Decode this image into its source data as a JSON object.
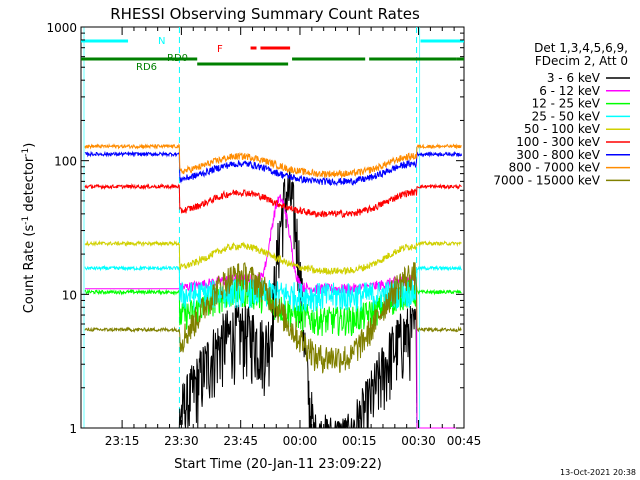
{
  "chart_data": {
    "type": "line",
    "title": "RHESSI Observing Summary Count Rates",
    "xlabel": "Start Time (20-Jan-11 23:09:22)",
    "ylabel_main": "Count Rate (s",
    "ylabel_sup1": "-1",
    "ylabel_mid": " detector",
    "ylabel_sup2": "-1",
    "ylabel_end": ")",
    "yscale": "log",
    "ylim": [
      1,
      1000
    ],
    "xlim_minutes": [
      -5.4,
      91.5
    ],
    "x_unit": "minutes after 23:10 (20-Jan-11)",
    "yticks": [
      {
        "value": 1,
        "label": "1"
      },
      {
        "value": 10,
        "label": "10"
      },
      {
        "value": 100,
        "label": "100"
      },
      {
        "value": 1000,
        "label": "1000"
      }
    ],
    "xticks": [
      {
        "minute": 5,
        "label": "23:15"
      },
      {
        "minute": 20,
        "label": "23:30"
      },
      {
        "minute": 35,
        "label": "23:45"
      },
      {
        "minute": 50,
        "label": "00:00"
      },
      {
        "minute": 65,
        "label": "00:15"
      },
      {
        "minute": 80,
        "label": "00:30"
      },
      {
        "minute": 95,
        "label": "00:45"
      }
    ],
    "legend_title": [
      "Det 1,3,4,5,6,9,",
      "FDecim 2, Att 0"
    ],
    "legend_placement": "right",
    "series": [
      {
        "name": "3 - 6 keV",
        "color": "#000000",
        "shape": "flare",
        "base": 0.8,
        "bump": 4.5,
        "peak": 55,
        "peak_min": 47
      },
      {
        "name": "6 - 12 keV",
        "color": "#ff00ff",
        "shape": "flare6",
        "base": 11,
        "bump": 13,
        "peak": 40,
        "peak_min": 45
      },
      {
        "name": "12 - 25 keV",
        "color": "#00ff00",
        "shape": "orbit",
        "base": 6.5,
        "bump": 10.5
      },
      {
        "name": "25 - 50 keV",
        "color": "#00ffff",
        "shape": "orbit",
        "base": 9.8,
        "bump": 10.5
      },
      {
        "name": "50 - 100 keV",
        "color": "#d0d000",
        "shape": "orbit",
        "base": 15,
        "bump": 23
      },
      {
        "name": "100 - 300 keV",
        "color": "#ff0000",
        "shape": "orbit",
        "base": 40,
        "bump": 58
      },
      {
        "name": "300 - 800 keV",
        "color": "#0000ff",
        "shape": "orbit",
        "base": 70,
        "bump": 95
      },
      {
        "name": "800 - 7000 keV",
        "color": "#ff8c00",
        "shape": "orbit",
        "base": 80,
        "bump": 108
      },
      {
        "name": "7000 - 15000 keV",
        "color": "#808000",
        "shape": "orbit",
        "base": 3.4,
        "bump": 14
      }
    ],
    "orbit_bumps": [
      {
        "center": 35,
        "halfwidth": 13
      },
      {
        "center": 79,
        "halfwidth": 11
      }
    ],
    "night_intervals": [
      {
        "from": -5.4,
        "to": 19.5
      },
      {
        "from": 79.5,
        "to": 91.5
      }
    ],
    "annotations": {
      "night_label": "N",
      "flare_label": "F",
      "rd_labels": [
        "RD6",
        "RD0"
      ],
      "stamp": "13-Oct-2021 20:38"
    },
    "bars": {
      "night_color": "#00ffff",
      "flare_color": "#ff0000",
      "decim_color": "#008000",
      "night": [
        {
          "from": -5.4,
          "to": 6.5
        },
        {
          "from": 80.5,
          "to": 91.5
        }
      ],
      "flare": [
        {
          "from": 37.5,
          "to": 39.0
        },
        {
          "from": 40.0,
          "to": 47.5
        }
      ],
      "decim": [
        {
          "from": -5.4,
          "to": 24.0
        },
        {
          "from": 24.0,
          "to": 47.0
        },
        {
          "from": 48.0,
          "to": 66.5
        },
        {
          "from": 67.5,
          "to": 89.5
        },
        {
          "from": 89.5,
          "to": 91.5
        }
      ]
    }
  }
}
